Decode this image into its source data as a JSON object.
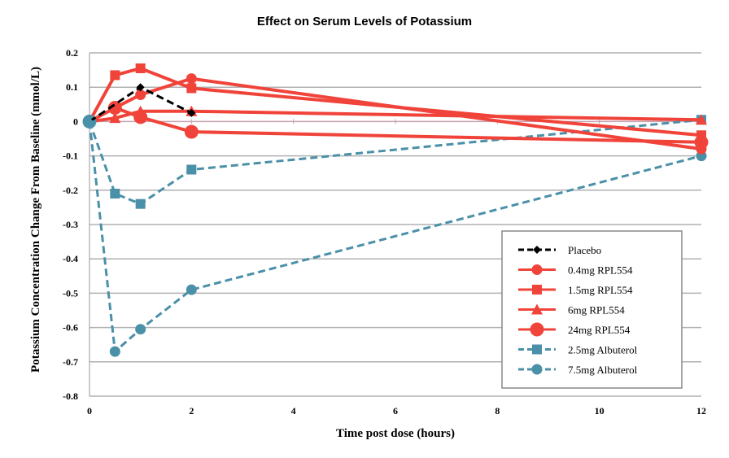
{
  "chart_data": {
    "type": "line",
    "title": "Effect on Serum Levels of Potassium",
    "xlabel": "Time post dose (hours)",
    "ylabel": "Potassium Concentration Change From Baseline (mmol/L)",
    "xlim": [
      0,
      12
    ],
    "ylim": [
      -0.8,
      0.2
    ],
    "xticks": [
      0,
      2,
      4,
      6,
      8,
      10,
      12
    ],
    "yticks": [
      0.2,
      0.1,
      0,
      -0.1,
      -0.2,
      -0.3,
      -0.4,
      -0.5,
      -0.6,
      -0.7,
      -0.8
    ],
    "ytick_labels": [
      "0.2",
      "0.1",
      "0",
      "-0.1",
      "-0.2",
      "-0.3",
      "-0.4",
      "-0.5",
      "-0.6",
      "-0.7",
      "-0.8"
    ],
    "grid": true,
    "legend": "bottom-right",
    "series": [
      {
        "name": "Placebo",
        "color": "#000000",
        "marker": "diamond",
        "dash": true,
        "x": [
          0,
          1,
          2
        ],
        "y": [
          0,
          0.1,
          0.025
        ]
      },
      {
        "name": "0.4mg RPL554",
        "color": "#f0443a",
        "marker": "circle",
        "dash": false,
        "x": [
          0,
          0.5,
          1,
          2,
          12
        ],
        "y": [
          0,
          0.04,
          0.078,
          0.125,
          -0.08
        ]
      },
      {
        "name": "1.5mg RPL554",
        "color": "#f0443a",
        "marker": "square",
        "dash": false,
        "x": [
          0,
          0.5,
          1,
          2,
          12
        ],
        "y": [
          0,
          0.135,
          0.155,
          0.097,
          -0.04
        ]
      },
      {
        "name": "6mg RPL554",
        "color": "#f0443a",
        "marker": "triangle",
        "dash": false,
        "x": [
          0,
          0.5,
          1,
          2,
          12
        ],
        "y": [
          0,
          0.01,
          0.03,
          0.03,
          0.005
        ]
      },
      {
        "name": "24mg RPL554",
        "color": "#f0443a",
        "marker": "bigcircle",
        "dash": false,
        "x": [
          0,
          0.5,
          1,
          2,
          12
        ],
        "y": [
          0,
          0.04,
          0.013,
          -0.03,
          -0.06
        ]
      },
      {
        "name": "2.5mg Albuterol",
        "color": "#4a90a8",
        "marker": "square",
        "dash": true,
        "x": [
          0,
          0.5,
          1,
          2,
          12
        ],
        "y": [
          0,
          -0.21,
          -0.24,
          -0.14,
          0.005
        ]
      },
      {
        "name": "7.5mg Albuterol",
        "color": "#4a90a8",
        "marker": "circle",
        "dash": true,
        "x": [
          0,
          0.5,
          1,
          2,
          12
        ],
        "y": [
          0,
          -0.67,
          -0.605,
          -0.49,
          -0.1
        ]
      }
    ]
  }
}
